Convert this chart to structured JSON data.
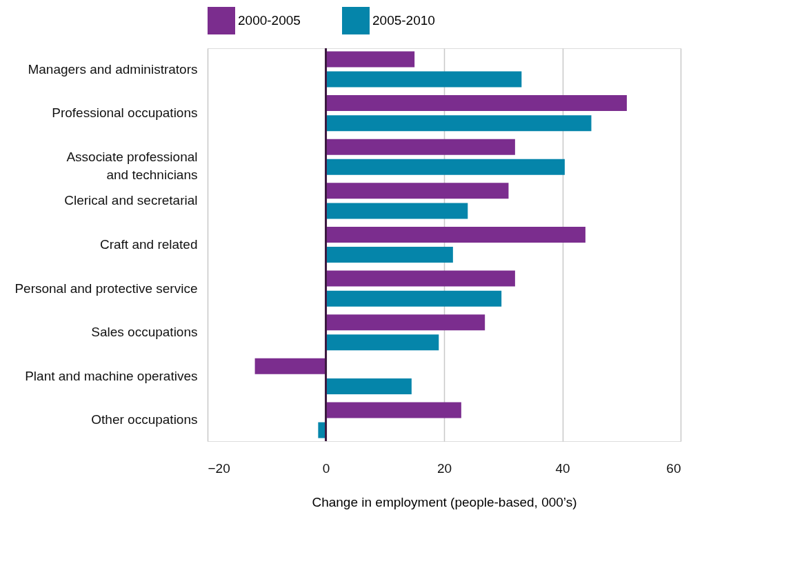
{
  "chart_data": {
    "type": "bar",
    "orientation": "horizontal",
    "xlabel": "Change in employment (people-based, 000’s)",
    "categories": [
      "Managers and administrators",
      "Professional occupations",
      "Associate professional\nand technicians",
      "Clerical and secretarial",
      "Craft and related",
      "Personal and protective service",
      "Sales occupations",
      "Plant and machine operatives",
      "Other occupations"
    ],
    "series": [
      {
        "name": "2000-2005",
        "color": "#7b2d8e",
        "values": [
          15.0,
          50.9,
          32.0,
          30.9,
          43.9,
          32.0,
          26.9,
          -12.0,
          22.9
        ]
      },
      {
        "name": "2005-2010",
        "color": "#0585aa",
        "values": [
          33.1,
          44.9,
          40.4,
          24.0,
          21.5,
          29.7,
          19.1,
          14.5,
          -1.3
        ]
      }
    ],
    "xlim": [
      -20,
      60
    ],
    "xticks": [
      -20,
      0,
      20,
      40,
      60
    ],
    "grid": "x",
    "legend": "top left"
  }
}
